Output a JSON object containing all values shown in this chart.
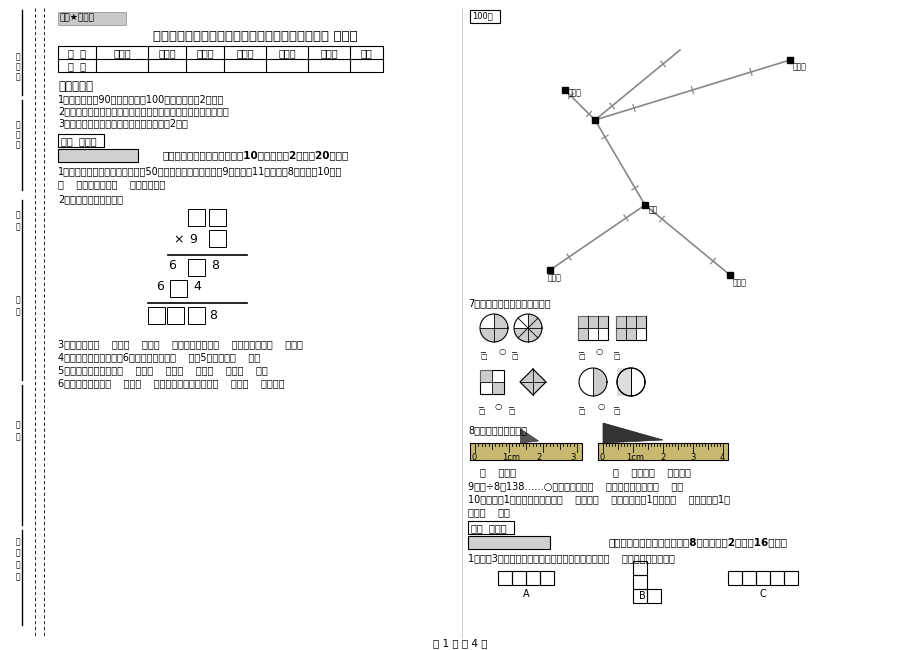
{
  "bg_color": "#ffffff",
  "title": "江西省实验小学三年级数学【上册】期末考试试题 附答案",
  "secret_label": "绝密★启用前",
  "table_headers": [
    "题  号",
    "填空题",
    "选择题",
    "判断题",
    "计算题",
    "综合题",
    "应用题",
    "总分"
  ],
  "table_row": [
    "得  分",
    "",
    "",
    "",
    "",
    "",
    "",
    ""
  ],
  "notes_title": "考试须知：",
  "notes": [
    "1、考试时间：90分钟，满分为100分（含卷面分2分）。",
    "2、请首先按要求在试卷的指定位置填写您的姓名、班级、学号。",
    "3、不要在试卷上乱写乱画，卷面不整洁扣2分。"
  ],
  "section1_header": "一、用心思考，正确填空（共10小题，每题2分，共20分）。",
  "q1_a": "1、体育老师对第一小组同学进行50米跑测试，成绩如下小红9秒，小丽11秒，小明8秒，小军10秒，",
  "q1_b": "（    ）跑得最快，（    ）跑得最慢。",
  "q2": "2、在里填上适当的数。",
  "q3": "3、你出生于（    ）年（    ）月（    ）日，那一年是（    ）年，全年有（    ）天。",
  "q4": "4、把一根绳子平均分成6份，每份是它的（    ），5份是它的（    ）。",
  "q5": "5、常用的长度单位有（    ）、（    ）、（    ）、（    ）、（    ）。",
  "q6": "6、小红家在学校（    ）方（    ）米处；小明家在学校（    ）方（    ）米处。",
  "q7_label": "7、看图写分数，并比较大小。",
  "q8_label": "8、量出钉子的长度。",
  "q8_sub1": "（    ）毫米",
  "q8_sub2": "（    ）厘米（    ）毫米。",
  "q9": "9、口÷8＝138……○，余数最大填（    ），这时被除数是（    ）。",
  "q10a": "10、分针走1小格，秒针正好走（    ），是（    ）秒。分针走1大格是（    ），时针走1大",
  "q10b": "格是（    ）。",
  "section2_header": "二、反复比较，慎重选择（共8小题，每题2分，共16分）。",
  "s2q1": "1、下列3个图形中，每个小正方形都一样大，那么（    ）图形的周长最长。",
  "score_label": "得分  评卷人",
  "footer": "第 1 页 共 4 页",
  "map_label_100": "100米",
  "map_label_school": "学校",
  "map_label_xiaohong": "小红家",
  "map_label_xiaogang": "小刚家",
  "map_label_xiaoming": "小明家",
  "map_label_xiaohui": "小惠家"
}
